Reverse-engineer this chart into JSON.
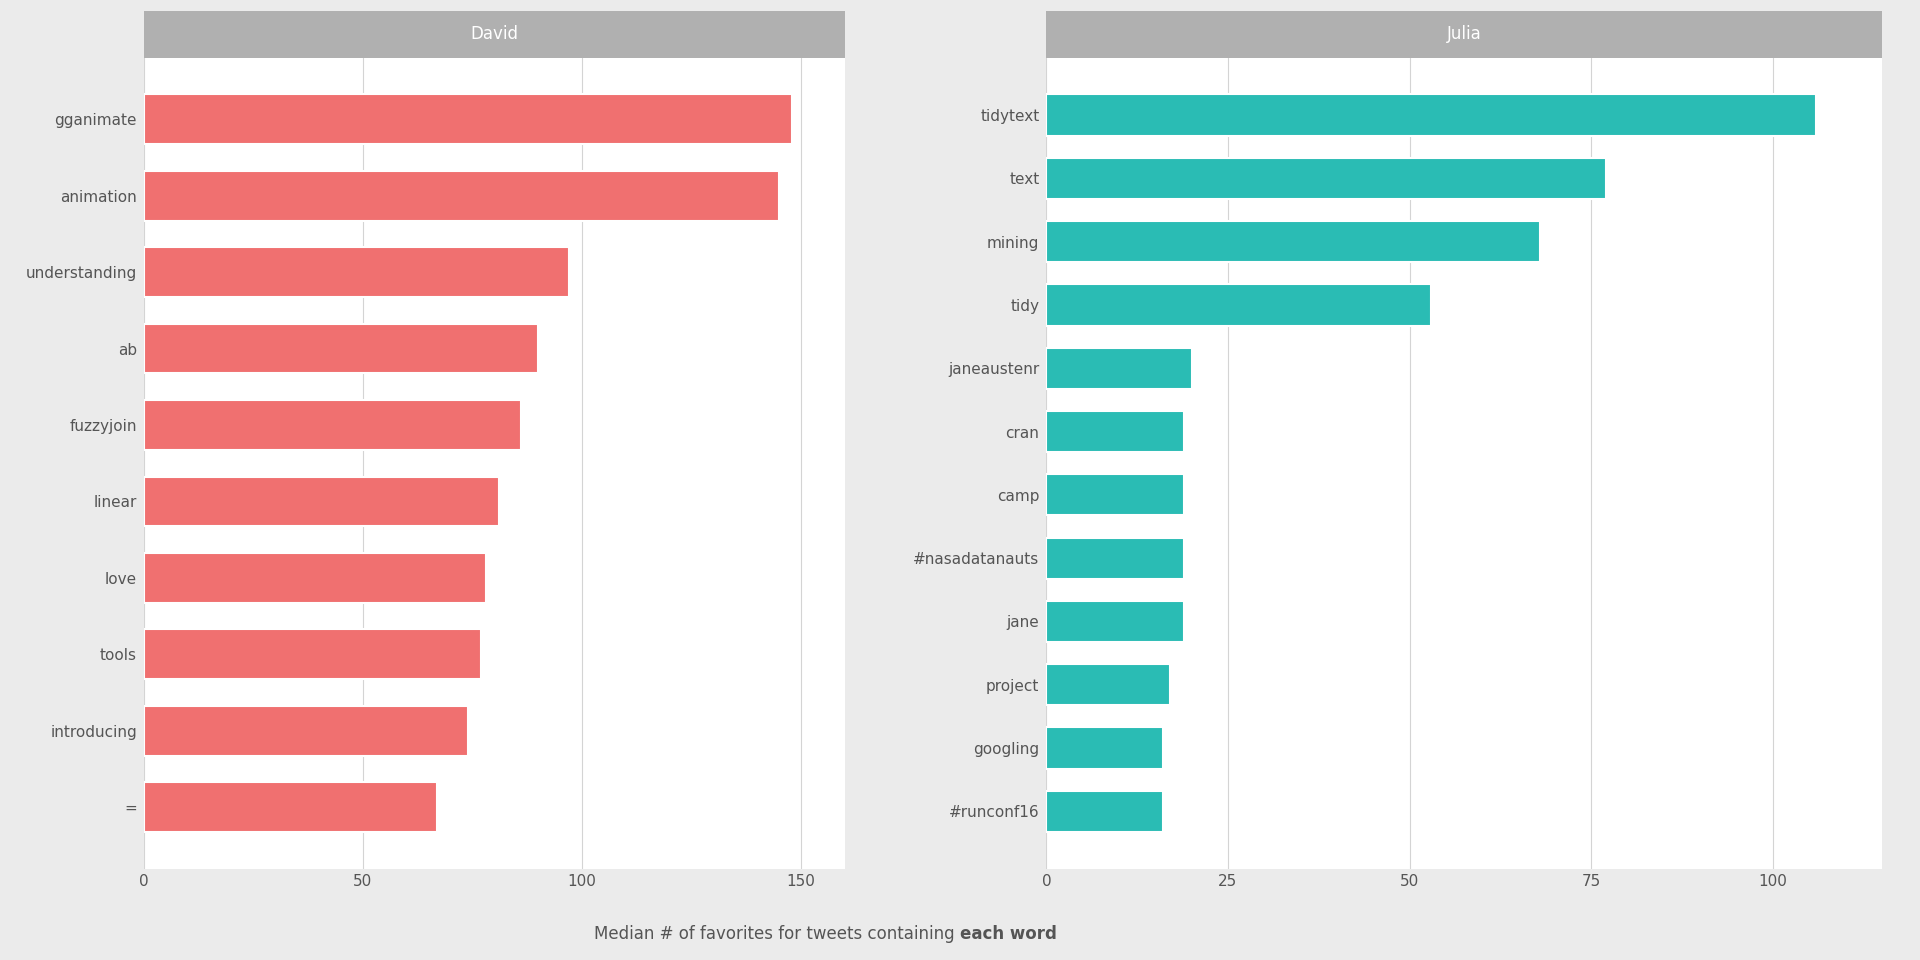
{
  "david": {
    "title": "David",
    "categories": [
      "gganimate",
      "animation",
      "understanding",
      "ab",
      "fuzzyjoin",
      "linear",
      "love",
      "tools",
      "introducing",
      "="
    ],
    "values": [
      148,
      145,
      97,
      90,
      86,
      81,
      78,
      77,
      74,
      67
    ],
    "color": "#F07070",
    "xlim": [
      0,
      160
    ],
    "xticks": [
      0,
      50,
      100,
      150
    ]
  },
  "julia": {
    "title": "Julia",
    "categories": [
      "tidytext",
      "text",
      "mining",
      "tidy",
      "janeaustenr",
      "cran",
      "camp",
      "#nasadatanauts",
      "jane",
      "project",
      "googling",
      "#runconf16"
    ],
    "values": [
      106,
      77,
      68,
      53,
      20,
      19,
      19,
      19,
      19,
      17,
      16,
      16
    ],
    "color": "#2ABCB4",
    "xlim": [
      0,
      115
    ],
    "xticks": [
      0,
      25,
      50,
      75,
      100
    ]
  },
  "xlabel": "Median # of favorites for tweets containing each word",
  "xlabel_plain": "Median # of favorites for tweets containing ",
  "xlabel_bold": "each word",
  "bg_color": "#ebebeb",
  "panel_bg": "#ffffff",
  "grid_color": "#d4d4d4",
  "title_bar_color": "#b0b0b0",
  "axis_text_color": "#555555",
  "xlabel_fontsize": 12,
  "title_fontsize": 12,
  "tick_fontsize": 11,
  "label_fontsize": 11
}
